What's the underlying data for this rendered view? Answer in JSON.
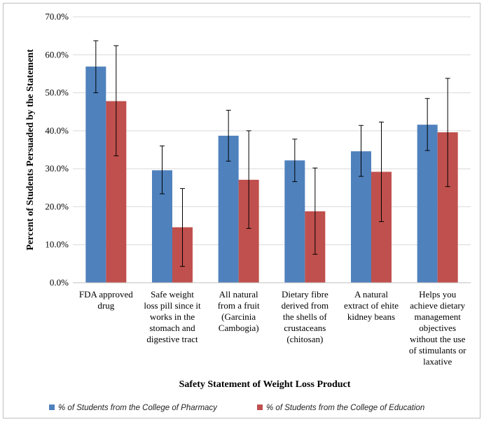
{
  "chart_data": {
    "type": "bar",
    "xlabel": "Safety Statement of Weight Loss Product",
    "ylabel": "Percent of Students Persuaded by the Statement",
    "ylim": [
      0,
      70
    ],
    "yticks": [
      "0.0%",
      "10.0%",
      "20.0%",
      "30.0%",
      "40.0%",
      "50.0%",
      "60.0%",
      "70.0%"
    ],
    "grid": true,
    "legend_position": "bottom",
    "categories": [
      [
        "FDA approved",
        "drug"
      ],
      [
        "Safe weight",
        "loss pill since it",
        "works in the",
        "stomach and",
        "digestive tract"
      ],
      [
        "All natural",
        "from a fruit",
        "(Garcinia",
        "Cambogia)"
      ],
      [
        "Dietary fibre",
        "derived from",
        "the shells of",
        "crustaceans",
        "(chitosan)"
      ],
      [
        "A natural",
        "extract of ehite",
        "kidney beans"
      ],
      [
        "Helps you",
        "achieve dietary",
        "management",
        "objectives",
        "without the use",
        "of stimulants or",
        "laxative"
      ]
    ],
    "series": [
      {
        "name": "% of Students from the College of Pharmacy",
        "color": "#4f81bd",
        "values": [
          56.9,
          29.6,
          38.7,
          32.2,
          34.6,
          41.6
        ],
        "err_low": [
          50.0,
          23.4,
          32.0,
          26.6,
          28.0,
          34.8
        ],
        "err_high": [
          63.7,
          36.0,
          45.4,
          37.8,
          41.4,
          48.5
        ]
      },
      {
        "name": "% of Students from the College of Education",
        "color": "#c0504d",
        "values": [
          47.8,
          14.6,
          27.1,
          18.8,
          29.2,
          39.6
        ],
        "err_low": [
          33.4,
          4.3,
          14.3,
          7.5,
          16.1,
          25.3
        ],
        "err_high": [
          62.4,
          24.8,
          40.0,
          30.2,
          42.3,
          53.8
        ]
      }
    ]
  }
}
